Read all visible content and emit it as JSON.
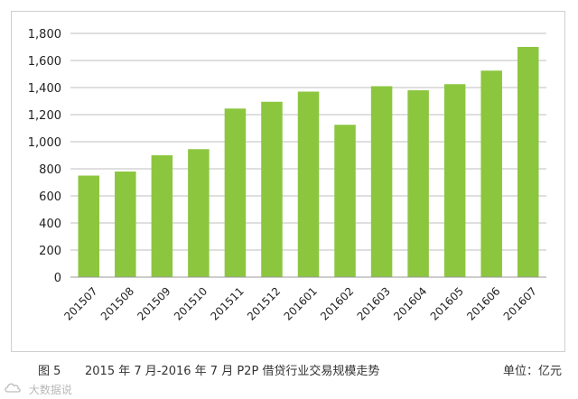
{
  "chart_data": {
    "type": "bar",
    "categories": [
      "201507",
      "201508",
      "201509",
      "201510",
      "201511",
      "201512",
      "201601",
      "201602",
      "201603",
      "201604",
      "201605",
      "201606",
      "201607"
    ],
    "values": [
      750,
      780,
      900,
      945,
      1245,
      1295,
      1370,
      1125,
      1410,
      1380,
      1425,
      1525,
      1700
    ],
    "ylim": [
      0,
      1800
    ],
    "yticks": [
      0,
      200,
      400,
      600,
      800,
      1000,
      1200,
      1400,
      1600,
      1800
    ],
    "ytick_labels": [
      "0",
      "200",
      "400",
      "600",
      "800",
      "1,000",
      "1,200",
      "1,400",
      "1,600",
      "1,800"
    ],
    "grid": true,
    "bar_color": "#8cc63f",
    "grid_color": "#bfbfbf"
  },
  "caption": {
    "figure_label": "图 5",
    "title": "2015 年 7 月-2016 年 7 月 P2P 借贷行业交易规模走势",
    "unit": "单位：亿元"
  },
  "watermark": {
    "icon": "cloud-logo-icon",
    "text": "大数据说"
  }
}
